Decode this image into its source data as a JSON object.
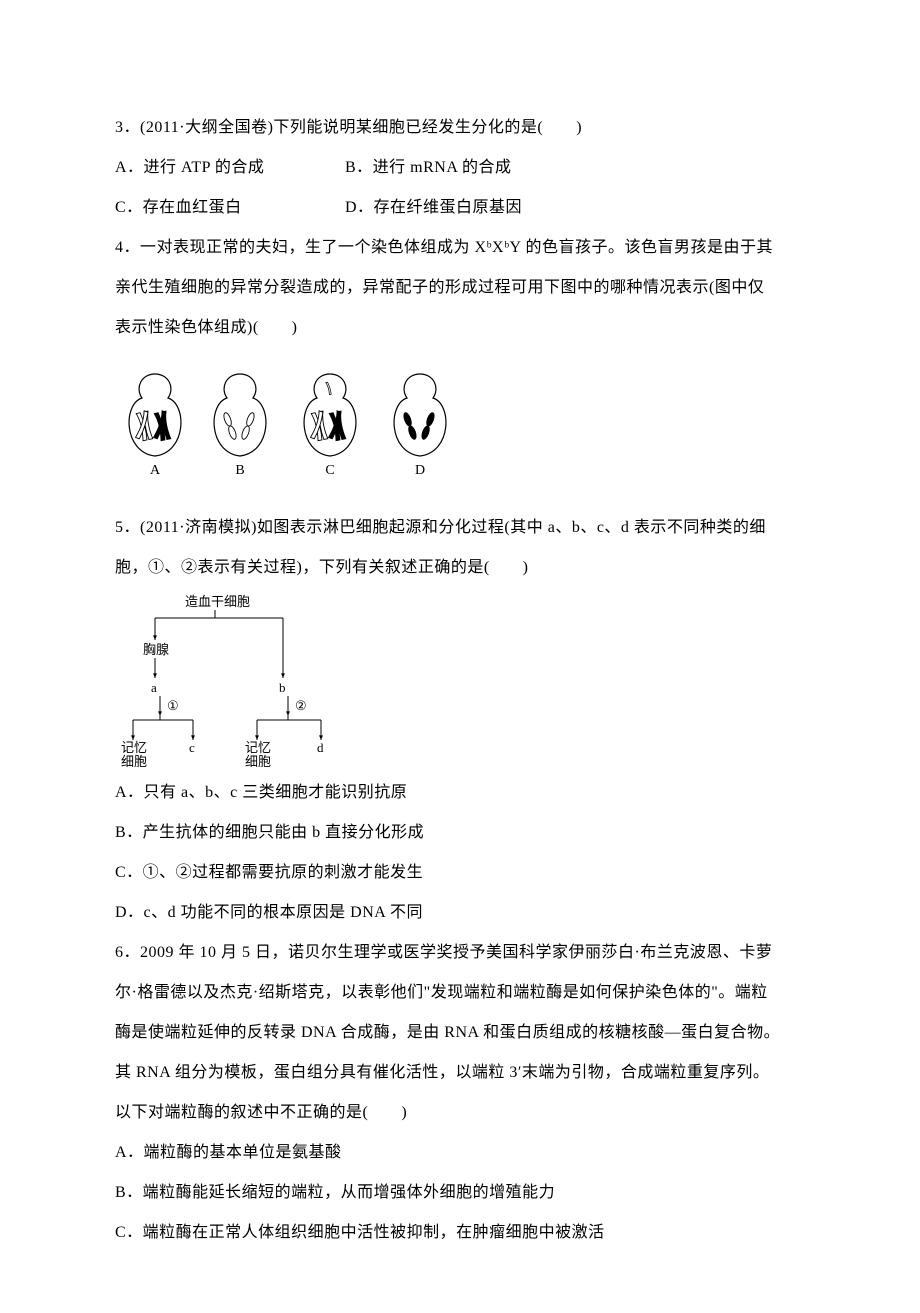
{
  "q3": {
    "stem": "3．(2011·大纲全国卷)下列能说明某细胞已经发生分化的是(　　)",
    "optA": "A．进行 ATP 的合成",
    "optB": "B．进行 mRNA 的合成",
    "optC": "C．存在血红蛋白",
    "optD": "D．存在纤维蛋白原基因"
  },
  "q4": {
    "line1": "4．一对表现正常的夫妇，生了一个染色体组成为 XᵇXᵇY 的色盲孩子。该色盲男孩是由于其",
    "line2": "亲代生殖细胞的异常分裂造成的，异常配子的形成过程可用下图中的哪种情况表示(图中仅",
    "line3": "表示性染色体组成)(　　)",
    "figure": {
      "cell_outline": "#000000",
      "bg": "#ffffff",
      "labels": [
        "A",
        "B",
        "C",
        "D"
      ],
      "cells": [
        {
          "chromosomes": [
            {
              "type": "X-pair",
              "fill": "#ffffff"
            },
            {
              "type": "Y-pair",
              "fill": "#000000"
            }
          ]
        },
        {
          "chromosomes": [
            {
              "type": "X-single",
              "fill": "#ffffff"
            },
            {
              "type": "X-single",
              "fill": "#ffffff"
            }
          ]
        },
        {
          "chromosomes": [
            {
              "type": "X-pair",
              "fill": "#ffffff"
            },
            {
              "type": "Y-pair",
              "fill": "#000000"
            }
          ]
        },
        {
          "chromosomes": [
            {
              "type": "Y-single",
              "fill": "#000000"
            },
            {
              "type": "Y-single",
              "fill": "#000000"
            }
          ]
        }
      ]
    }
  },
  "q5": {
    "line1": "5．(2011·济南模拟)如图表示淋巴细胞起源和分化过程(其中 a、b、c、d 表示不同种类的细",
    "line2": "胞，①、②表示有关过程)，下列有关叙述正确的是(　　)",
    "figure": {
      "root": "造血干细胞",
      "left_mid": "胸腺",
      "left_node": "a",
      "left_proc": "①",
      "left_left": "记忆\n细胞",
      "left_right": "c",
      "right_node": "b",
      "right_proc": "②",
      "right_left": "记忆\n细胞",
      "right_right": "d",
      "line_color": "#000000",
      "font_size": 13
    },
    "optA": "A．只有 a、b、c 三类细胞才能识别抗原",
    "optB": "B．产生抗体的细胞只能由 b 直接分化形成",
    "optC": "C．①、②过程都需要抗原的刺激才能发生",
    "optD": "D．c、d 功能不同的根本原因是 DNA 不同"
  },
  "q6": {
    "line1": "6．2009 年 10 月 5 日，诺贝尔生理学或医学奖授予美国科学家伊丽莎白·布兰克波恩、卡萝",
    "line2": "尔·格雷德以及杰克·绍斯塔克，以表彰他们\"发现端粒和端粒酶是如何保护染色体的\"。端粒",
    "line3": "酶是使端粒延伸的反转录 DNA 合成酶，是由 RNA 和蛋白质组成的核糖核酸—蛋白复合物。",
    "line4": "其 RNA 组分为模板，蛋白组分具有催化活性，以端粒 3′末端为引物，合成端粒重复序列。",
    "line5": "以下对端粒酶的叙述中不正确的是(　　)",
    "optA": "A．端粒酶的基本单位是氨基酸",
    "optB": "B．端粒酶能延长缩短的端粒，从而增强体外细胞的增殖能力",
    "optC": "C．端粒酶在正常人体组织细胞中活性被抑制，在肿瘤细胞中被激活"
  }
}
